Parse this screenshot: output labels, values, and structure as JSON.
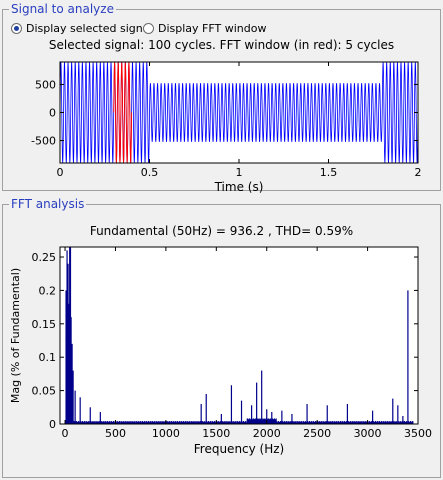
{
  "signal_panel": {
    "title": "Signal to analyze",
    "radio_selected_label": "Display selected signal",
    "radio_fft_label": "Display FFT window",
    "info_text": "Selected signal: 100 cycles. FFT window (in red): 5 cycles",
    "selected_option": "Display selected signal"
  },
  "fft_panel": {
    "title": "FFT analysis",
    "result_text": "Fundamental (50Hz) = 936.2 , THD= 0.59%"
  },
  "colors": {
    "signal": "#0000ff",
    "fft_window": "#ff0000",
    "fft_bars": "#00008b",
    "legend_text": "#2a3fbf"
  },
  "chart_data": [
    {
      "type": "line",
      "title": "",
      "xlabel": "Time (s)",
      "ylabel": "",
      "xlim": [
        0,
        2
      ],
      "ylim": [
        -900,
        900
      ],
      "x_ticks": [
        0,
        0.5,
        1,
        1.5,
        2
      ],
      "x_tick_labels": [
        "0",
        "0.5",
        "1",
        "1.5",
        "2"
      ],
      "y_ticks": [
        500,
        0,
        -500
      ],
      "y_tick_labels": [
        "500",
        "0",
        "-500"
      ],
      "series": [
        {
          "kind": "50Hz sine with varying amplitude",
          "frequency_hz": 50,
          "segments": [
            {
              "from": 0.0,
              "to": 0.5,
              "amplitude": 890
            },
            {
              "from": 0.5,
              "to": 1.8,
              "amplitude": 520
            },
            {
              "from": 1.8,
              "to": 2.0,
              "amplitude": 890
            }
          ]
        }
      ],
      "fft_window": {
        "from": 0.3,
        "to": 0.4
      },
      "grid": false
    },
    {
      "type": "bar",
      "title": "Fundamental (50Hz) = 936.2 , THD= 0.59%",
      "xlabel": "Frequency (Hz)",
      "ylabel": "Mag (% of Fundamental)",
      "xlim": [
        -50,
        3500
      ],
      "ylim": [
        0,
        0.265
      ],
      "x_ticks": [
        0,
        500,
        1000,
        1500,
        2000,
        2500,
        3000,
        3500
      ],
      "x_tick_labels": [
        "0",
        "500",
        "1000",
        "1500",
        "2000",
        "2500",
        "3000",
        "3500"
      ],
      "y_ticks": [
        0,
        0.05,
        0.1,
        0.15,
        0.2,
        0.25
      ],
      "y_tick_labels": [
        "0",
        "0.05",
        "0.1",
        "0.15",
        "0.2",
        "0.25"
      ],
      "peaks": [
        {
          "f": 10,
          "v": 0.2
        },
        {
          "f": 20,
          "v": 0.26
        },
        {
          "f": 30,
          "v": 0.24
        },
        {
          "f": 40,
          "v": 0.18
        },
        {
          "f": 60,
          "v": 0.16
        },
        {
          "f": 70,
          "v": 0.12
        },
        {
          "f": 80,
          "v": 0.08
        },
        {
          "f": 100,
          "v": 0.05
        },
        {
          "f": 150,
          "v": 0.04
        },
        {
          "f": 250,
          "v": 0.025
        },
        {
          "f": 350,
          "v": 0.018
        },
        {
          "f": 1350,
          "v": 0.03
        },
        {
          "f": 1400,
          "v": 0.045
        },
        {
          "f": 1550,
          "v": 0.015
        },
        {
          "f": 1650,
          "v": 0.058
        },
        {
          "f": 1750,
          "v": 0.035
        },
        {
          "f": 1850,
          "v": 0.028
        },
        {
          "f": 1900,
          "v": 0.062
        },
        {
          "f": 1950,
          "v": 0.08
        },
        {
          "f": 2000,
          "v": 0.022
        },
        {
          "f": 2050,
          "v": 0.018
        },
        {
          "f": 2150,
          "v": 0.02
        },
        {
          "f": 2250,
          "v": 0.015
        },
        {
          "f": 2400,
          "v": 0.03
        },
        {
          "f": 2600,
          "v": 0.028
        },
        {
          "f": 2800,
          "v": 0.03
        },
        {
          "f": 3050,
          "v": 0.02
        },
        {
          "f": 3250,
          "v": 0.038
        },
        {
          "f": 3300,
          "v": 0.028
        },
        {
          "f": 3350,
          "v": 0.012
        },
        {
          "f": 3400,
          "v": 0.2
        }
      ]
    }
  ]
}
